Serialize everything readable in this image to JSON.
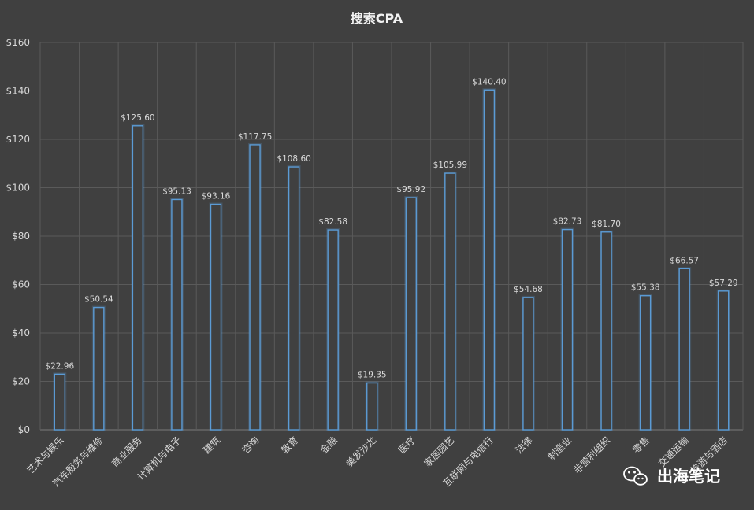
{
  "chart_data": {
    "type": "bar",
    "title": "搜索CPA",
    "categories": [
      "艺术与娱乐",
      "汽车服务与维修",
      "商业服务",
      "计算机与电子",
      "建筑",
      "咨询",
      "教育",
      "金融",
      "美发沙龙",
      "医疗",
      "家居园艺",
      "互联网与电信行",
      "法律",
      "制造业",
      "非营利组织",
      "零售",
      "交通运输",
      "旅游与酒店"
    ],
    "values": [
      22.96,
      50.54,
      125.6,
      95.13,
      93.16,
      117.75,
      108.6,
      82.58,
      19.35,
      95.92,
      105.99,
      140.4,
      54.68,
      82.73,
      81.7,
      55.38,
      66.57,
      57.29
    ],
    "data_labels": [
      "$22.96",
      "$50.54",
      "$125.60",
      "$95.13",
      "$93.16",
      "$117.75",
      "$108.60",
      "$82.58",
      "$19.35",
      "$95.92",
      "$105.99",
      "$140.40",
      "$54.68",
      "$82.73",
      "$81.70",
      "$55.38",
      "$66.57",
      "$57.29"
    ],
    "ylim": [
      0,
      160
    ],
    "yticks": [
      0,
      20,
      40,
      60,
      80,
      100,
      120,
      140,
      160
    ],
    "ytick_labels": [
      "$0",
      "$20",
      "$40",
      "$60",
      "$80",
      "$100",
      "$120",
      "$140",
      "$160"
    ],
    "grid": true,
    "colors": {
      "background": "#404040",
      "bar_stroke": "#5b9bd5",
      "text": "#d9d9d9"
    }
  },
  "watermark": {
    "text": "出海笔记",
    "icon": "wechat-icon"
  }
}
